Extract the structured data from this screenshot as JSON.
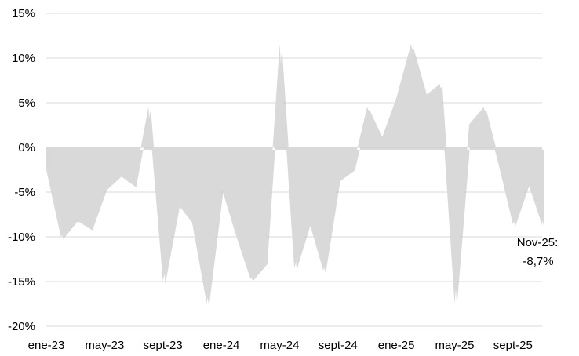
{
  "chart_data": {
    "type": "area",
    "categories": [
      "ene-23",
      "feb-23",
      "mar-23",
      "abr-23",
      "may-23",
      "jun-23",
      "jul-23",
      "ago-23",
      "sept-23",
      "oct-23",
      "nov-23",
      "dic-23",
      "ene-24",
      "feb-24",
      "mar-24",
      "abr-24",
      "may-24",
      "jun-24",
      "jul-24",
      "ago-24",
      "sept-24",
      "oct-24",
      "nov-24",
      "dic-24",
      "ene-25",
      "feb-25",
      "mar-25",
      "abr-25",
      "may-25",
      "jun-25",
      "jul-25",
      "ago-25",
      "sept-25",
      "oct-25",
      "nov-25"
    ],
    "values": [
      -2.5,
      -10.0,
      -8.0,
      -9.0,
      -4.5,
      -3.0,
      -4.2,
      4.5,
      -15.0,
      -6.3,
      -8.4,
      -17.5,
      -4.4,
      -9.8,
      -14.7,
      -12.8,
      11.5,
      -13.5,
      -8.2,
      -13.8,
      -3.5,
      -2.3,
      4.5,
      1.0,
      5.5,
      11.5,
      5.8,
      7.1,
      -17.5,
      2.6,
      4.5,
      -1.8,
      -8.6,
      -3.8,
      -8.7
    ],
    "ylim": [
      -20,
      15
    ],
    "yticks": [
      "15%",
      "10%",
      "5%",
      "0%",
      "-5%",
      "-10%",
      "-15%",
      "-20%"
    ],
    "ytick_values": [
      15,
      10,
      5,
      0,
      -5,
      -10,
      -15,
      -20
    ],
    "xtick_labels": [
      "ene-23",
      "may-23",
      "sept-23",
      "ene-24",
      "may-24",
      "sept-24",
      "ene-25",
      "may-25",
      "sept-25"
    ],
    "xtick_indices": [
      0,
      4,
      8,
      12,
      16,
      20,
      24,
      28,
      32
    ],
    "annotation": {
      "line1": "Nov-25:",
      "line2": "-8,7%",
      "index": 34
    },
    "fill_color": "#d9d9d9",
    "grid_color": "#d9d9d9",
    "grid": true,
    "legend": "none"
  }
}
